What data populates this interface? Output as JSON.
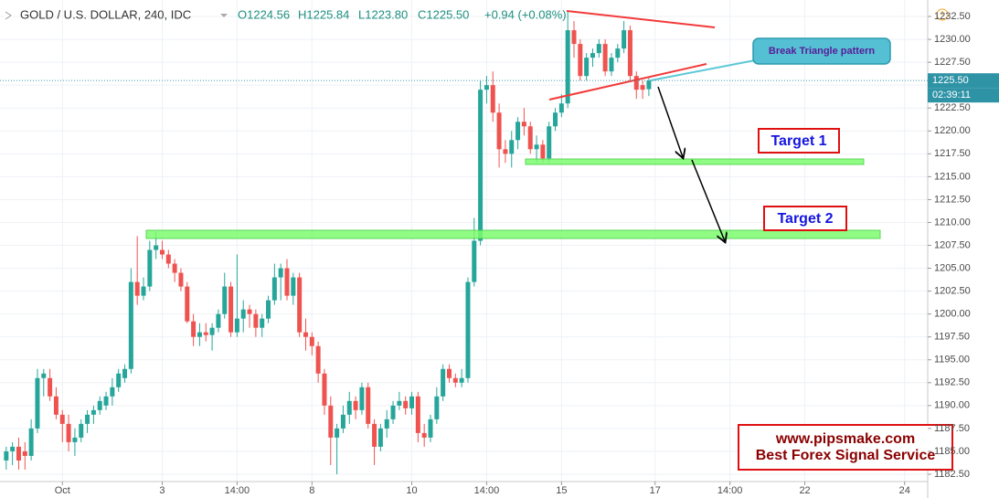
{
  "chart_data": {
    "type": "candlestick",
    "title": "GOLD / U.S. DOLLAR, 240, IDC",
    "legend_texts": {
      "open": "O1224.56",
      "high": "H1225.84",
      "low": "L1223.80",
      "close": "C1225.50",
      "change": "+0.94 (+0.08%)"
    },
    "colors": {
      "up": "#26a69a",
      "down": "#ef5350"
    },
    "grid": true,
    "open": [
      1184,
      1185,
      1185.5,
      1185,
      1184.5,
      1187.5,
      1193,
      1193,
      1191,
      1189,
      1188,
      1186,
      1186.5,
      1188,
      1189,
      1189.5,
      1190,
      1191,
      1192,
      1193,
      1194,
      1203.5,
      1202,
      1203,
      1207,
      1207,
      1206.5,
      1205.5,
      1204.5,
      1203,
      1199.2,
      1197.5,
      1198,
      1197.7,
      1198.5,
      1200,
      1203,
      1198,
      1199.5,
      1200.5,
      1200,
      1198.5,
      1199.5,
      1201.5,
      1204,
      1205,
      1202,
      1204,
      1198,
      1197.5,
      1196.5,
      1193.5,
      1190,
      1186.5,
      1187.5,
      1189,
      1190.5,
      1189.5,
      1192,
      1188,
      1185.5,
      1187.5,
      1188.5,
      1190,
      1190.5,
      1189.7,
      1191,
      1187,
      1186.5,
      1188.5,
      1191,
      1194,
      1193,
      1192.5,
      1193,
      1203.5,
      1208,
      1224.5,
      1225,
      1222,
      1218,
      1217.5,
      1219,
      1221,
      1220.5,
      1218,
      1218.5,
      1217,
      1220.5,
      1222,
      1223,
      1231,
      1229.5,
      1226,
      1228,
      1228.5,
      1229.5,
      1226.5,
      1228,
      1229,
      1231,
      1226,
      1225,
      1224.56
    ],
    "high": [
      1185.5,
      1186,
      1186.5,
      1186,
      1188.5,
      1194,
      1194,
      1194,
      1192,
      1189.5,
      1189,
      1187.5,
      1188.5,
      1189.5,
      1190,
      1191,
      1191.5,
      1193,
      1194,
      1194.5,
      1205,
      1208.5,
      1204,
      1208,
      1209,
      1208,
      1207,
      1206,
      1205,
      1203.5,
      1200,
      1199,
      1199,
      1199,
      1200.5,
      1204.5,
      1203.5,
      1206.5,
      1201.5,
      1201,
      1200.5,
      1200,
      1202,
      1205.5,
      1205.5,
      1206,
      1204.5,
      1204.5,
      1199.5,
      1198,
      1197,
      1194,
      1191,
      1188,
      1190,
      1191.5,
      1191,
      1192.5,
      1192.5,
      1188.5,
      1188,
      1189.5,
      1190.5,
      1191.5,
      1191,
      1191.5,
      1191.5,
      1188,
      1189,
      1192,
      1194.5,
      1194.5,
      1193.5,
      1194,
      1204,
      1210.5,
      1225.5,
      1226,
      1226.5,
      1223,
      1219,
      1220,
      1221.5,
      1222.5,
      1221,
      1219.5,
      1219,
      1221,
      1222.5,
      1224,
      1233,
      1232,
      1230,
      1228.5,
      1229,
      1230,
      1230,
      1228.5,
      1229.5,
      1232,
      1231.5,
      1226.5,
      1225.5,
      1225.84
    ],
    "low": [
      1183,
      1183.5,
      1183,
      1183,
      1184,
      1187,
      1191,
      1190.5,
      1188.5,
      1186,
      1185,
      1184.5,
      1186,
      1187,
      1188,
      1189,
      1189.5,
      1190,
      1191.5,
      1192.5,
      1193.5,
      1201,
      1201.5,
      1202.5,
      1206,
      1206,
      1205,
      1203.5,
      1202.5,
      1199,
      1196.5,
      1196.5,
      1197,
      1196,
      1198,
      1199.5,
      1197.5,
      1197.5,
      1198,
      1198.5,
      1197.5,
      1197.5,
      1199,
      1201,
      1201.5,
      1201.5,
      1201,
      1197.5,
      1196,
      1195.5,
      1192.5,
      1189,
      1183.5,
      1182.5,
      1187,
      1188,
      1188.5,
      1189,
      1187.5,
      1183.5,
      1185,
      1186.5,
      1188,
      1189.5,
      1189,
      1189,
      1186,
      1185.5,
      1186,
      1188,
      1190.5,
      1192.5,
      1192,
      1192,
      1192.5,
      1203,
      1207.5,
      1223,
      1221,
      1216,
      1216.5,
      1216,
      1218,
      1219.5,
      1217.5,
      1216.5,
      1216.5,
      1216.5,
      1220,
      1221.5,
      1222.5,
      1228,
      1225.5,
      1225.5,
      1227,
      1228,
      1226,
      1226,
      1227.5,
      1228.5,
      1225.5,
      1223.5,
      1223.5,
      1223.8
    ],
    "close": [
      1185,
      1185.5,
      1184,
      1184.5,
      1187.5,
      1193,
      1193.5,
      1191,
      1189,
      1188,
      1186,
      1186.5,
      1188,
      1189,
      1189.5,
      1190.5,
      1191,
      1192,
      1193.5,
      1194,
      1203.5,
      1202,
      1203,
      1207,
      1207.5,
      1206.5,
      1205.5,
      1204.5,
      1203,
      1199.2,
      1197.5,
      1198,
      1197.7,
      1198.5,
      1200,
      1203,
      1198,
      1199.5,
      1200.5,
      1200,
      1198.5,
      1199.5,
      1201.5,
      1204,
      1205,
      1202,
      1204,
      1198,
      1197.5,
      1196.5,
      1193.5,
      1190,
      1186.5,
      1187.5,
      1189,
      1190.5,
      1189.5,
      1192,
      1188,
      1185.5,
      1187.5,
      1188.5,
      1190,
      1190.5,
      1189.7,
      1191,
      1187,
      1186.5,
      1188.5,
      1191,
      1194,
      1193,
      1192.5,
      1193,
      1203.5,
      1208,
      1224.5,
      1225,
      1222,
      1218,
      1217.5,
      1219,
      1221,
      1220.5,
      1218,
      1218.5,
      1217,
      1220.5,
      1222,
      1223,
      1231,
      1229.5,
      1226,
      1228,
      1228.5,
      1229.5,
      1226.5,
      1228,
      1229,
      1231,
      1226,
      1224.5,
      1224.5,
      1225.5
    ],
    "xlim": [
      -1,
      147.4
    ],
    "xticks": [
      {
        "value": 9,
        "label": "Oct"
      },
      {
        "value": 25,
        "label": "3"
      },
      {
        "value": 37,
        "label": "14:00"
      },
      {
        "value": 49,
        "label": "8"
      },
      {
        "value": 65,
        "label": "10"
      },
      {
        "value": 77,
        "label": "14:00"
      },
      {
        "value": 89,
        "label": "15"
      },
      {
        "value": 104,
        "label": "17"
      },
      {
        "value": 116,
        "label": "14:00"
      },
      {
        "value": 128,
        "label": "22"
      },
      {
        "value": 144,
        "label": "24"
      }
    ],
    "ylim": [
      1181.7,
      1234.3
    ],
    "yticks": [
      {
        "value": 1182.5,
        "label": "1182.50"
      },
      {
        "value": 1185,
        "label": "1185.00"
      },
      {
        "value": 1187.5,
        "label": "1187.50"
      },
      {
        "value": 1190,
        "label": "1190.00"
      },
      {
        "value": 1192.5,
        "label": "1192.50"
      },
      {
        "value": 1195,
        "label": "1195.00"
      },
      {
        "value": 1197.5,
        "label": "1197.50"
      },
      {
        "value": 1200,
        "label": "1200.00"
      },
      {
        "value": 1202.5,
        "label": "1202.50"
      },
      {
        "value": 1205,
        "label": "1205.00"
      },
      {
        "value": 1207.5,
        "label": "1207.50"
      },
      {
        "value": 1210,
        "label": "1210.00"
      },
      {
        "value": 1212.5,
        "label": "1212.50"
      },
      {
        "value": 1215,
        "label": "1215.00"
      },
      {
        "value": 1217.5,
        "label": "1217.50"
      },
      {
        "value": 1220,
        "label": "1220.00"
      },
      {
        "value": 1222.5,
        "label": "1222.50"
      },
      {
        "value": 1225,
        "label": "1225.00"
      },
      {
        "value": 1227.5,
        "label": "1227.50"
      },
      {
        "value": 1230,
        "label": "1230.00"
      },
      {
        "value": 1232.5,
        "label": "1232.50"
      }
    ],
    "last_price": {
      "value": 1225.5,
      "label": "1225.50"
    },
    "countdown": "02:39:11",
    "annotations": {
      "pattern": "Break Triangle pattern",
      "target1": "Target 1",
      "target2": "Target 2",
      "website": "www.pipsmake.com",
      "slogan": "Best Forex Signal Service"
    }
  }
}
